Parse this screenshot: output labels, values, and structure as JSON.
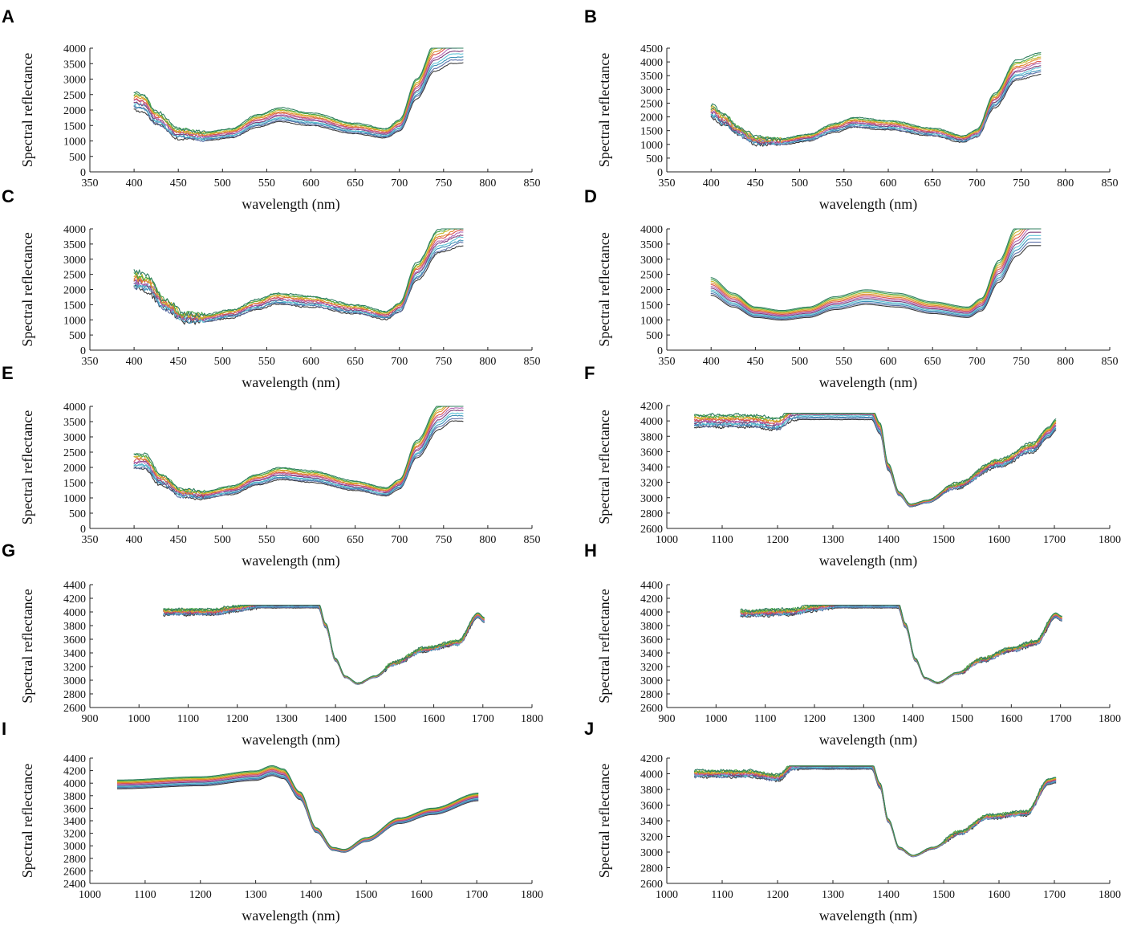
{
  "figure": {
    "line_colors": [
      "#3b3b3b",
      "#5b6fa6",
      "#3a8fb7",
      "#5ec3d6",
      "#7f3f7a",
      "#b569b7",
      "#d9534f",
      "#e08a2e",
      "#c7b82a",
      "#4aa84a",
      "#2f7f5f"
    ]
  },
  "chart_data": [
    {
      "id": "A",
      "panel_label": "A",
      "type": "line",
      "xlabel": "wavelength (nm)",
      "ylabel": "Spectral reflectance",
      "xlim": [
        350,
        850
      ],
      "ylim": [
        0,
        4000
      ],
      "xticks": [
        350,
        400,
        450,
        500,
        550,
        600,
        650,
        700,
        750,
        800,
        850
      ],
      "yticks": [
        0,
        500,
        1000,
        1500,
        2000,
        2500,
        3000,
        3500,
        4000
      ],
      "x_range": [
        400,
        773
      ],
      "series_count": 11,
      "series_spread": 0.22,
      "noise": 90,
      "knots": [
        [
          400,
          2300
        ],
        [
          410,
          2250
        ],
        [
          425,
          1750
        ],
        [
          450,
          1250
        ],
        [
          480,
          1150
        ],
        [
          510,
          1250
        ],
        [
          540,
          1650
        ],
        [
          565,
          1850
        ],
        [
          600,
          1700
        ],
        [
          650,
          1400
        ],
        [
          685,
          1250
        ],
        [
          700,
          1500
        ],
        [
          720,
          2700
        ],
        [
          740,
          3700
        ],
        [
          760,
          4000
        ],
        [
          773,
          4000
        ]
      ]
    },
    {
      "id": "B",
      "panel_label": "B",
      "type": "line",
      "xlabel": "wavelength (nm)",
      "ylabel": "Spectral reflectance",
      "xlim": [
        350,
        850
      ],
      "ylim": [
        0,
        4500
      ],
      "xticks": [
        350,
        400,
        450,
        500,
        550,
        600,
        650,
        700,
        750,
        800,
        850
      ],
      "yticks": [
        0,
        500,
        1000,
        1500,
        2000,
        2500,
        3000,
        3500,
        4000,
        4500
      ],
      "x_range": [
        400,
        773
      ],
      "series_count": 11,
      "series_spread": 0.18,
      "noise": 140,
      "knots": [
        [
          400,
          2200
        ],
        [
          415,
          1900
        ],
        [
          430,
          1500
        ],
        [
          450,
          1150
        ],
        [
          480,
          1100
        ],
        [
          510,
          1250
        ],
        [
          540,
          1600
        ],
        [
          560,
          1800
        ],
        [
          600,
          1700
        ],
        [
          650,
          1450
        ],
        [
          685,
          1200
        ],
        [
          700,
          1400
        ],
        [
          720,
          2600
        ],
        [
          745,
          3700
        ],
        [
          773,
          3950
        ]
      ]
    },
    {
      "id": "C",
      "panel_label": "C",
      "type": "line",
      "xlabel": "wavelength (nm)",
      "ylabel": "Spectral reflectance",
      "xlim": [
        350,
        850
      ],
      "ylim": [
        0,
        4000
      ],
      "xticks": [
        350,
        400,
        450,
        500,
        550,
        600,
        650,
        700,
        750,
        800,
        850
      ],
      "yticks": [
        0,
        500,
        1000,
        1500,
        2000,
        2500,
        3000,
        3500,
        4000
      ],
      "x_range": [
        400,
        773
      ],
      "series_count": 11,
      "series_spread": 0.2,
      "noise": 170,
      "knots": [
        [
          400,
          2300
        ],
        [
          415,
          2200
        ],
        [
          435,
          1500
        ],
        [
          455,
          1100
        ],
        [
          480,
          1050
        ],
        [
          510,
          1200
        ],
        [
          540,
          1500
        ],
        [
          560,
          1700
        ],
        [
          600,
          1600
        ],
        [
          650,
          1350
        ],
        [
          685,
          1150
        ],
        [
          700,
          1400
        ],
        [
          720,
          2600
        ],
        [
          745,
          3600
        ],
        [
          773,
          3900
        ]
      ]
    },
    {
      "id": "D",
      "panel_label": "D",
      "type": "line",
      "xlabel": "wavelength (nm)",
      "ylabel": "Spectral reflectance",
      "xlim": [
        350,
        850
      ],
      "ylim": [
        0,
        4000
      ],
      "xticks": [
        350,
        400,
        450,
        500,
        550,
        600,
        650,
        700,
        750,
        800,
        850
      ],
      "yticks": [
        0,
        500,
        1000,
        1500,
        2000,
        2500,
        3000,
        3500,
        4000
      ],
      "x_range": [
        400,
        773
      ],
      "series_count": 11,
      "series_spread": 0.25,
      "noise": 0,
      "knots": [
        [
          400,
          2100
        ],
        [
          425,
          1650
        ],
        [
          450,
          1250
        ],
        [
          480,
          1150
        ],
        [
          510,
          1250
        ],
        [
          540,
          1550
        ],
        [
          575,
          1750
        ],
        [
          610,
          1650
        ],
        [
          650,
          1400
        ],
        [
          690,
          1250
        ],
        [
          705,
          1500
        ],
        [
          725,
          2600
        ],
        [
          745,
          3600
        ],
        [
          760,
          4000
        ],
        [
          773,
          4000
        ]
      ]
    },
    {
      "id": "E",
      "panel_label": "E",
      "type": "line",
      "xlabel": "wavelength (nm)",
      "ylabel": "Spectral reflectance",
      "xlim": [
        350,
        850
      ],
      "ylim": [
        0,
        4000
      ],
      "xticks": [
        350,
        400,
        450,
        500,
        550,
        600,
        650,
        700,
        750,
        800,
        850
      ],
      "yticks": [
        0,
        500,
        1000,
        1500,
        2000,
        2500,
        3000,
        3500,
        4000
      ],
      "x_range": [
        400,
        773
      ],
      "series_count": 11,
      "series_spread": 0.2,
      "noise": 90,
      "knots": [
        [
          400,
          2200
        ],
        [
          412,
          2200
        ],
        [
          430,
          1600
        ],
        [
          455,
          1150
        ],
        [
          480,
          1100
        ],
        [
          510,
          1250
        ],
        [
          540,
          1600
        ],
        [
          565,
          1800
        ],
        [
          600,
          1700
        ],
        [
          650,
          1400
        ],
        [
          685,
          1200
        ],
        [
          700,
          1450
        ],
        [
          720,
          2600
        ],
        [
          745,
          3650
        ],
        [
          760,
          3950
        ],
        [
          773,
          3950
        ]
      ]
    },
    {
      "id": "F",
      "panel_label": "F",
      "type": "line",
      "xlabel": "wavelength (nm)",
      "ylabel": "Spectral reflectance",
      "xlim": [
        1000,
        1800
      ],
      "ylim": [
        2600,
        4200
      ],
      "xticks": [
        1000,
        1100,
        1200,
        1300,
        1400,
        1500,
        1600,
        1700,
        1800
      ],
      "yticks": [
        2600,
        2800,
        3000,
        3200,
        3400,
        3600,
        3800,
        4000,
        4200
      ],
      "x_range": [
        1050,
        1703
      ],
      "series_count": 11,
      "series_spread": 0.1,
      "noise": 30,
      "clip_max": 4100,
      "knots": [
        [
          1050,
          4000
        ],
        [
          1150,
          4000
        ],
        [
          1200,
          3960
        ],
        [
          1230,
          4100
        ],
        [
          1370,
          4100
        ],
        [
          1385,
          3900
        ],
        [
          1400,
          3400
        ],
        [
          1420,
          3050
        ],
        [
          1440,
          2900
        ],
        [
          1470,
          2950
        ],
        [
          1520,
          3150
        ],
        [
          1600,
          3450
        ],
        [
          1660,
          3650
        ],
        [
          1690,
          3850
        ],
        [
          1703,
          3950
        ]
      ]
    },
    {
      "id": "G",
      "panel_label": "G",
      "type": "line",
      "xlabel": "wavelength (nm)",
      "ylabel": "Spectral reflectance",
      "xlim": [
        900,
        1800
      ],
      "ylim": [
        2600,
        4400
      ],
      "xticks": [
        900,
        1000,
        1100,
        1200,
        1300,
        1400,
        1500,
        1600,
        1700,
        1800
      ],
      "yticks": [
        2600,
        2800,
        3000,
        3200,
        3400,
        3600,
        3800,
        4000,
        4200,
        4400
      ],
      "x_range": [
        1050,
        1703
      ],
      "series_count": 11,
      "series_spread": 0.05,
      "noise": 35,
      "clip_max": 4100,
      "knots": [
        [
          1050,
          4000
        ],
        [
          1150,
          4000
        ],
        [
          1200,
          4050
        ],
        [
          1240,
          4100
        ],
        [
          1365,
          4100
        ],
        [
          1380,
          3800
        ],
        [
          1400,
          3300
        ],
        [
          1420,
          3050
        ],
        [
          1445,
          2950
        ],
        [
          1480,
          3050
        ],
        [
          1520,
          3250
        ],
        [
          1580,
          3450
        ],
        [
          1650,
          3550
        ],
        [
          1690,
          3950
        ],
        [
          1703,
          3880
        ]
      ]
    },
    {
      "id": "H",
      "panel_label": "H",
      "type": "line",
      "xlabel": "wavelength (nm)",
      "ylabel": "Spectral reflectance",
      "xlim": [
        900,
        1800
      ],
      "ylim": [
        2600,
        4400
      ],
      "xticks": [
        900,
        1000,
        1100,
        1200,
        1300,
        1400,
        1500,
        1600,
        1700,
        1800
      ],
      "yticks": [
        2600,
        2800,
        3000,
        3200,
        3400,
        3600,
        3800,
        4000,
        4200,
        4400
      ],
      "x_range": [
        1050,
        1703
      ],
      "series_count": 11,
      "series_spread": 0.05,
      "noise": 40,
      "clip_max": 4100,
      "knots": [
        [
          1050,
          3980
        ],
        [
          1150,
          4000
        ],
        [
          1200,
          4060
        ],
        [
          1240,
          4100
        ],
        [
          1370,
          4100
        ],
        [
          1385,
          3800
        ],
        [
          1405,
          3300
        ],
        [
          1425,
          3030
        ],
        [
          1450,
          2960
        ],
        [
          1490,
          3100
        ],
        [
          1540,
          3300
        ],
        [
          1600,
          3450
        ],
        [
          1650,
          3550
        ],
        [
          1690,
          3950
        ],
        [
          1703,
          3900
        ]
      ]
    },
    {
      "id": "I",
      "panel_label": "I",
      "type": "line",
      "xlabel": "wavelength (nm)",
      "ylabel": "Spectral reflectance",
      "xlim": [
        1000,
        1800
      ],
      "ylim": [
        2400,
        4400
      ],
      "xticks": [
        1000,
        1100,
        1200,
        1300,
        1400,
        1500,
        1600,
        1700,
        1800
      ],
      "yticks": [
        2400,
        2600,
        2800,
        3000,
        3200,
        3400,
        3600,
        3800,
        4000,
        4200,
        4400
      ],
      "x_range": [
        1050,
        1703
      ],
      "series_count": 11,
      "series_spread": 0.08,
      "noise": 0,
      "knots": [
        [
          1050,
          3980
        ],
        [
          1200,
          4030
        ],
        [
          1300,
          4120
        ],
        [
          1330,
          4200
        ],
        [
          1350,
          4150
        ],
        [
          1380,
          3800
        ],
        [
          1410,
          3250
        ],
        [
          1440,
          2950
        ],
        [
          1460,
          2920
        ],
        [
          1500,
          3100
        ],
        [
          1560,
          3400
        ],
        [
          1620,
          3550
        ],
        [
          1703,
          3780
        ]
      ]
    },
    {
      "id": "J",
      "panel_label": "J",
      "type": "line",
      "xlabel": "wavelength (nm)",
      "ylabel": "Spectral reflectance",
      "xlim": [
        1000,
        1800
      ],
      "ylim": [
        2600,
        4200
      ],
      "xticks": [
        1000,
        1100,
        1200,
        1300,
        1400,
        1500,
        1600,
        1700,
        1800
      ],
      "yticks": [
        2600,
        2800,
        3000,
        3200,
        3400,
        3600,
        3800,
        4000,
        4200
      ],
      "x_range": [
        1050,
        1703
      ],
      "series_count": 11,
      "series_spread": 0.05,
      "noise": 30,
      "clip_max": 4100,
      "knots": [
        [
          1050,
          4000
        ],
        [
          1150,
          4000
        ],
        [
          1200,
          3950
        ],
        [
          1230,
          4100
        ],
        [
          1370,
          4100
        ],
        [
          1385,
          3850
        ],
        [
          1400,
          3400
        ],
        [
          1420,
          3050
        ],
        [
          1445,
          2950
        ],
        [
          1480,
          3050
        ],
        [
          1530,
          3250
        ],
        [
          1580,
          3450
        ],
        [
          1650,
          3500
        ],
        [
          1690,
          3900
        ],
        [
          1703,
          3920
        ]
      ]
    }
  ]
}
